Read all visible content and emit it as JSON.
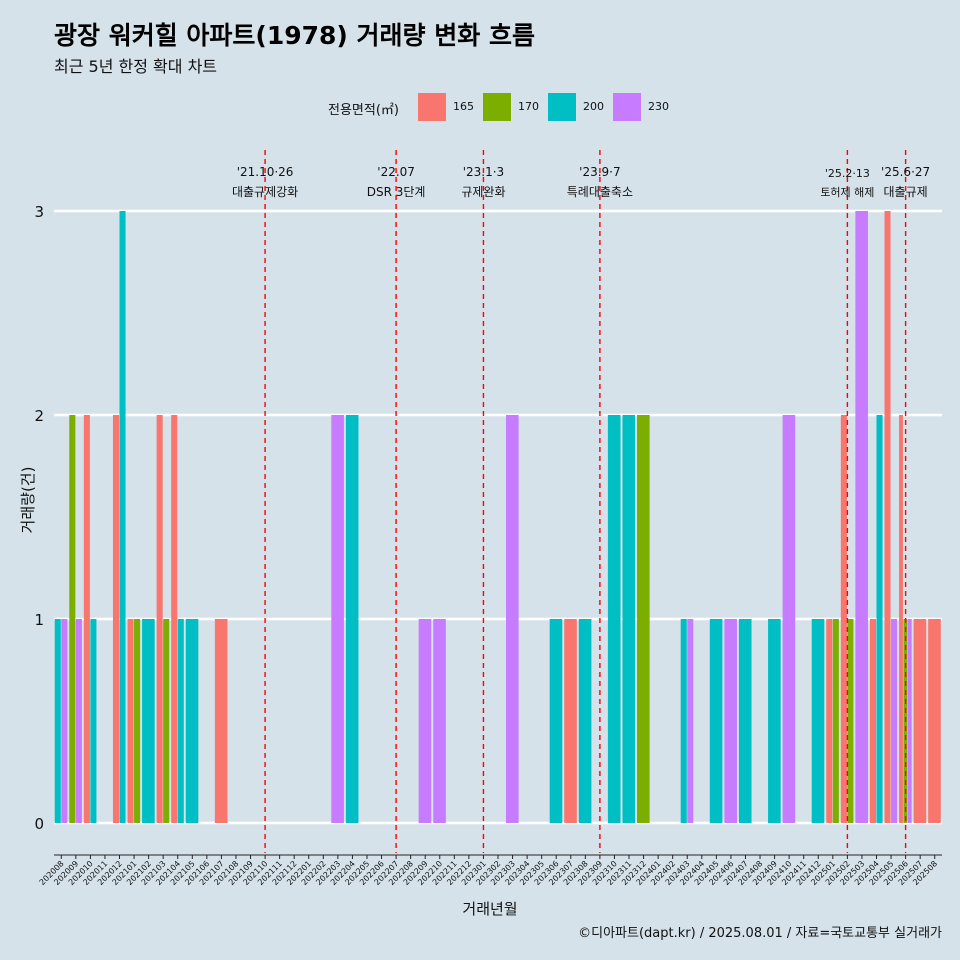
{
  "title": "광장 워커힐 아파트(1978) 거래량 변화 흐름",
  "subtitle": "최근 5년 한정 확대 차트",
  "caption": "©디아파트(dapt.kr) / 2025.08.01 / 자료=국토교통부 실거래가",
  "legend": {
    "title": "전용면적(㎡)",
    "items": [
      {
        "label": "165",
        "color": "#F8766D"
      },
      {
        "label": "170",
        "color": "#7CAE00"
      },
      {
        "label": "200",
        "color": "#00BFC4"
      },
      {
        "label": "230",
        "color": "#C77CFF"
      }
    ]
  },
  "chart_data": {
    "type": "bar",
    "xlabel": "거래년월",
    "ylabel": "거래량(건)",
    "ylim": [
      0,
      3
    ],
    "yticks": [
      0,
      1,
      2,
      3
    ],
    "grid": true,
    "legend_position": "top",
    "categories": [
      "202008",
      "202009",
      "202010",
      "202011",
      "202012",
      "202101",
      "202102",
      "202103",
      "202104",
      "202105",
      "202106",
      "202107",
      "202108",
      "202109",
      "202110",
      "202111",
      "202112",
      "202201",
      "202202",
      "202203",
      "202204",
      "202205",
      "202206",
      "202207",
      "202208",
      "202209",
      "202210",
      "202211",
      "202212",
      "202301",
      "202302",
      "202303",
      "202304",
      "202305",
      "202306",
      "202307",
      "202308",
      "202309",
      "202310",
      "202311",
      "202312",
      "202401",
      "202402",
      "202403",
      "202404",
      "202405",
      "202406",
      "202407",
      "202408",
      "202409",
      "202410",
      "202411",
      "202412",
      "202501",
      "202502",
      "202503",
      "202504",
      "202505",
      "202506",
      "202507",
      "202508"
    ],
    "series": [
      {
        "name": "165",
        "values": [
          0,
          0,
          2,
          0,
          2,
          1,
          0,
          2,
          2,
          0,
          0,
          1,
          0,
          0,
          0,
          0,
          0,
          0,
          0,
          0,
          0,
          0,
          0,
          0,
          0,
          0,
          0,
          0,
          0,
          0,
          0,
          0,
          0,
          0,
          0,
          1,
          0,
          0,
          0,
          0,
          0,
          0,
          0,
          0,
          0,
          0,
          0,
          0,
          0,
          0,
          0,
          0,
          0,
          1,
          2,
          0,
          1,
          3,
          2,
          1,
          1
        ]
      },
      {
        "name": "170",
        "values": [
          0,
          2,
          0,
          0,
          0,
          1,
          0,
          1,
          0,
          0,
          0,
          0,
          0,
          0,
          0,
          0,
          0,
          0,
          0,
          0,
          0,
          0,
          0,
          0,
          0,
          0,
          0,
          0,
          0,
          0,
          0,
          0,
          0,
          0,
          0,
          0,
          0,
          0,
          0,
          0,
          2,
          0,
          0,
          0,
          0,
          0,
          0,
          0,
          0,
          0,
          0,
          0,
          0,
          1,
          1,
          0,
          0,
          0,
          1,
          0,
          0
        ]
      },
      {
        "name": "200",
        "values": [
          1,
          0,
          1,
          0,
          3,
          0,
          1,
          0,
          1,
          1,
          0,
          0,
          0,
          0,
          0,
          0,
          0,
          0,
          0,
          0,
          2,
          0,
          0,
          0,
          0,
          0,
          0,
          0,
          0,
          0,
          0,
          0,
          0,
          0,
          1,
          0,
          1,
          0,
          2,
          2,
          0,
          0,
          0,
          1,
          0,
          1,
          0,
          1,
          0,
          1,
          0,
          0,
          1,
          0,
          0,
          0,
          2,
          0,
          0,
          0,
          0
        ]
      },
      {
        "name": "230",
        "values": [
          1,
          1,
          0,
          0,
          0,
          0,
          0,
          0,
          0,
          0,
          0,
          0,
          0,
          0,
          0,
          0,
          0,
          0,
          0,
          2,
          0,
          0,
          0,
          0,
          0,
          1,
          1,
          0,
          0,
          0,
          0,
          2,
          0,
          0,
          0,
          0,
          0,
          0,
          0,
          0,
          0,
          0,
          0,
          1,
          0,
          0,
          1,
          0,
          0,
          0,
          2,
          0,
          0,
          0,
          0,
          3,
          0,
          1,
          1,
          0,
          0
        ]
      }
    ],
    "events": [
      {
        "date": "'21.10·26",
        "label": "대출규제강화",
        "x": "202110"
      },
      {
        "date": "'22.07",
        "label": "DSR 3단계",
        "x": "202207"
      },
      {
        "date": "'23.1·3",
        "label": "규제완화",
        "x": "202301"
      },
      {
        "date": "'23.9·7",
        "label": "특례대출축소",
        "x": "202309"
      },
      {
        "date": "'25.2·13",
        "label": "토허제 해제",
        "x": "202502"
      },
      {
        "date": "'25.6·27",
        "label": "대출규제",
        "x": "202506"
      }
    ]
  }
}
